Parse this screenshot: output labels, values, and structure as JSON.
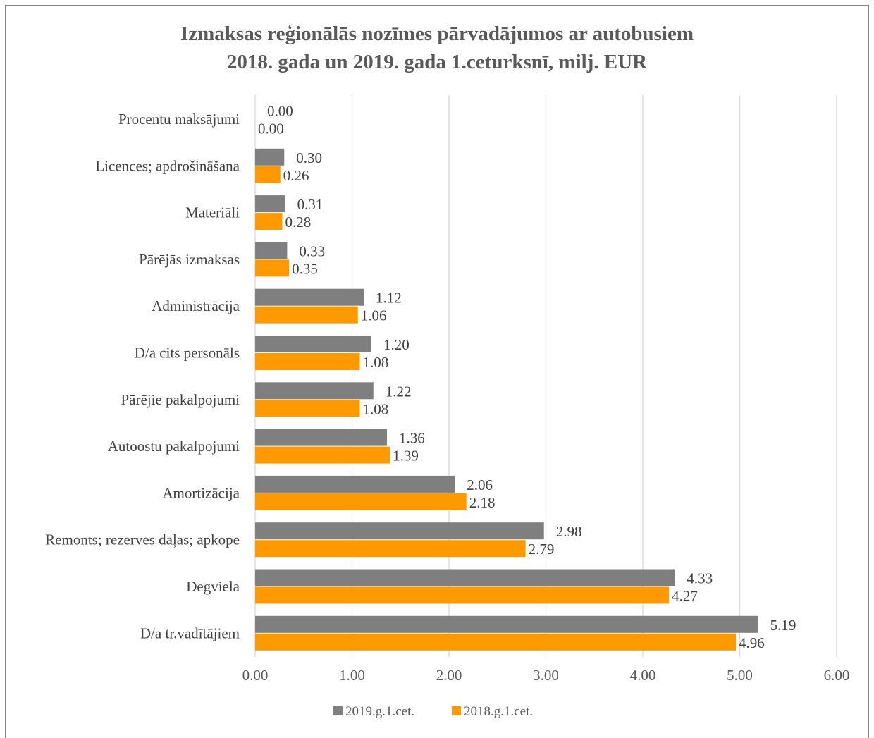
{
  "chart_data": {
    "type": "bar",
    "orientation": "horizontal",
    "title": [
      "Izmaksas reģionālās nozīmes pārvadājumos ar autobusiem",
      "2018. gada un 2019. gada 1.ceturksnī, milj. EUR"
    ],
    "categories": [
      "Procentu maksājumi",
      "Licences; apdrošināšana",
      "Materiāli",
      "Pārējās izmaksas",
      "Administrācija",
      "D/a cits personāls",
      "Pārējie pakalpojumi",
      "Autoostu pakalpojumi",
      "Amortizācija",
      "Remonts; rezerves daļas; apkope",
      "Degviela",
      "D/a tr.vadītājiem"
    ],
    "series": [
      {
        "name": "2019.g.1.cet.",
        "color": "#7f7f7f",
        "values": [
          0.0,
          0.3,
          0.31,
          0.33,
          1.12,
          1.2,
          1.22,
          1.36,
          2.06,
          2.98,
          4.33,
          5.19
        ],
        "labels": [
          "0.00",
          "0.30",
          "0.31",
          "0.33",
          "1.12",
          "1.20",
          "1.22",
          "1.36",
          "2.06",
          "2.98",
          "4.33",
          "5.19"
        ]
      },
      {
        "name": "2018.g.1.cet.",
        "color": "#ff9900",
        "values": [
          0.0,
          0.26,
          0.28,
          0.35,
          1.06,
          1.08,
          1.08,
          1.39,
          2.18,
          2.79,
          4.27,
          4.96
        ],
        "labels": [
          "0.00",
          "0.26",
          "0.28",
          "0.35",
          "1.06",
          "1.08",
          "1.08",
          "1.39",
          "2.18",
          "2.79",
          "4.27",
          "4.96"
        ]
      }
    ],
    "xlim": [
      0,
      6
    ],
    "ticks": [
      "0.00",
      "1.00",
      "2.00",
      "3.00",
      "4.00",
      "5.00",
      "6.00"
    ],
    "grid": true,
    "legend_position": "bottom"
  }
}
